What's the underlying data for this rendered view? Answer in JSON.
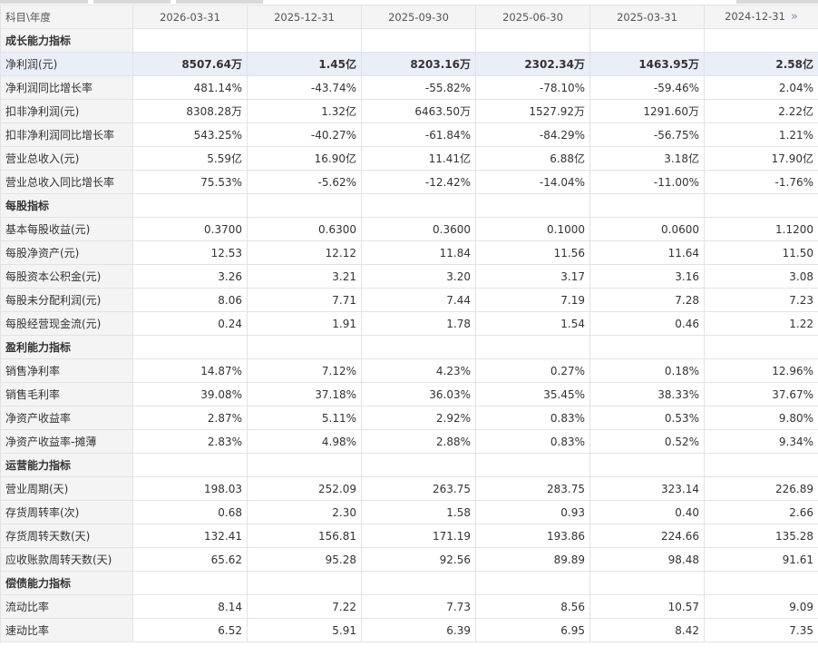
{
  "header": {
    "first_label": "科目\\年度",
    "periods": [
      "2026-03-31",
      "2025-12-31",
      "2025-09-30",
      "2025-06-30",
      "2025-03-31",
      "2024-12-31"
    ],
    "next_icon": "»"
  },
  "rows": [
    {
      "type": "section",
      "label": "成长能力指标",
      "values": [
        "",
        "",
        "",
        "",
        "",
        ""
      ]
    },
    {
      "type": "highlight",
      "label": "净利润(元)",
      "values": [
        "8507.64万",
        "1.45亿",
        "8203.16万",
        "2302.34万",
        "1463.95万",
        "2.58亿"
      ]
    },
    {
      "type": "data",
      "label": "净利润同比增长率",
      "values": [
        "481.14%",
        "-43.74%",
        "-55.82%",
        "-78.10%",
        "-59.46%",
        "2.04%"
      ]
    },
    {
      "type": "data",
      "label": "扣非净利润(元)",
      "values": [
        "8308.28万",
        "1.32亿",
        "6463.50万",
        "1527.92万",
        "1291.60万",
        "2.22亿"
      ]
    },
    {
      "type": "data",
      "label": "扣非净利润同比增长率",
      "values": [
        "543.25%",
        "-40.27%",
        "-61.84%",
        "-84.29%",
        "-56.75%",
        "1.21%"
      ]
    },
    {
      "type": "data",
      "label": "营业总收入(元)",
      "values": [
        "5.59亿",
        "16.90亿",
        "11.41亿",
        "6.88亿",
        "3.18亿",
        "17.90亿"
      ]
    },
    {
      "type": "data",
      "label": "营业总收入同比增长率",
      "values": [
        "75.53%",
        "-5.62%",
        "-12.42%",
        "-14.04%",
        "-11.00%",
        "-1.76%"
      ]
    },
    {
      "type": "section",
      "label": "每股指标",
      "values": [
        "",
        "",
        "",
        "",
        "",
        ""
      ]
    },
    {
      "type": "data",
      "label": "基本每股收益(元)",
      "values": [
        "0.3700",
        "0.6300",
        "0.3600",
        "0.1000",
        "0.0600",
        "1.1200"
      ]
    },
    {
      "type": "data",
      "label": "每股净资产(元)",
      "values": [
        "12.53",
        "12.12",
        "11.84",
        "11.56",
        "11.64",
        "11.50"
      ]
    },
    {
      "type": "data",
      "label": "每股资本公积金(元)",
      "values": [
        "3.26",
        "3.21",
        "3.20",
        "3.17",
        "3.16",
        "3.08"
      ]
    },
    {
      "type": "data",
      "label": "每股未分配利润(元)",
      "values": [
        "8.06",
        "7.71",
        "7.44",
        "7.19",
        "7.28",
        "7.23"
      ]
    },
    {
      "type": "data",
      "label": "每股经营现金流(元)",
      "values": [
        "0.24",
        "1.91",
        "1.78",
        "1.54",
        "0.46",
        "1.22"
      ]
    },
    {
      "type": "section",
      "label": "盈利能力指标",
      "values": [
        "",
        "",
        "",
        "",
        "",
        ""
      ]
    },
    {
      "type": "data",
      "label": "销售净利率",
      "values": [
        "14.87%",
        "7.12%",
        "4.23%",
        "0.27%",
        "0.18%",
        "12.96%"
      ]
    },
    {
      "type": "data",
      "label": "销售毛利率",
      "values": [
        "39.08%",
        "37.18%",
        "36.03%",
        "35.45%",
        "38.33%",
        "37.67%"
      ]
    },
    {
      "type": "data",
      "label": "净资产收益率",
      "values": [
        "2.87%",
        "5.11%",
        "2.92%",
        "0.83%",
        "0.53%",
        "9.80%"
      ]
    },
    {
      "type": "data",
      "label": "净资产收益率-摊薄",
      "values": [
        "2.83%",
        "4.98%",
        "2.88%",
        "0.83%",
        "0.52%",
        "9.34%"
      ]
    },
    {
      "type": "section",
      "label": "运营能力指标",
      "values": [
        "",
        "",
        "",
        "",
        "",
        ""
      ]
    },
    {
      "type": "data",
      "label": "营业周期(天)",
      "values": [
        "198.03",
        "252.09",
        "263.75",
        "283.75",
        "323.14",
        "226.89"
      ]
    },
    {
      "type": "data",
      "label": "存货周转率(次)",
      "values": [
        "0.68",
        "2.30",
        "1.58",
        "0.93",
        "0.40",
        "2.66"
      ]
    },
    {
      "type": "data",
      "label": "存货周转天数(天)",
      "values": [
        "132.41",
        "156.81",
        "171.19",
        "193.86",
        "224.66",
        "135.28"
      ]
    },
    {
      "type": "data",
      "label": "应收账款周转天数(天)",
      "values": [
        "65.62",
        "95.28",
        "92.56",
        "89.89",
        "98.48",
        "91.61"
      ]
    },
    {
      "type": "section",
      "label": "偿债能力指标",
      "values": [
        "",
        "",
        "",
        "",
        "",
        ""
      ]
    },
    {
      "type": "data",
      "label": "流动比率",
      "values": [
        "8.14",
        "7.22",
        "7.73",
        "8.56",
        "10.57",
        "9.09"
      ]
    },
    {
      "type": "data",
      "label": "速动比率",
      "values": [
        "6.52",
        "5.91",
        "6.39",
        "6.95",
        "8.42",
        "7.35"
      ]
    }
  ]
}
